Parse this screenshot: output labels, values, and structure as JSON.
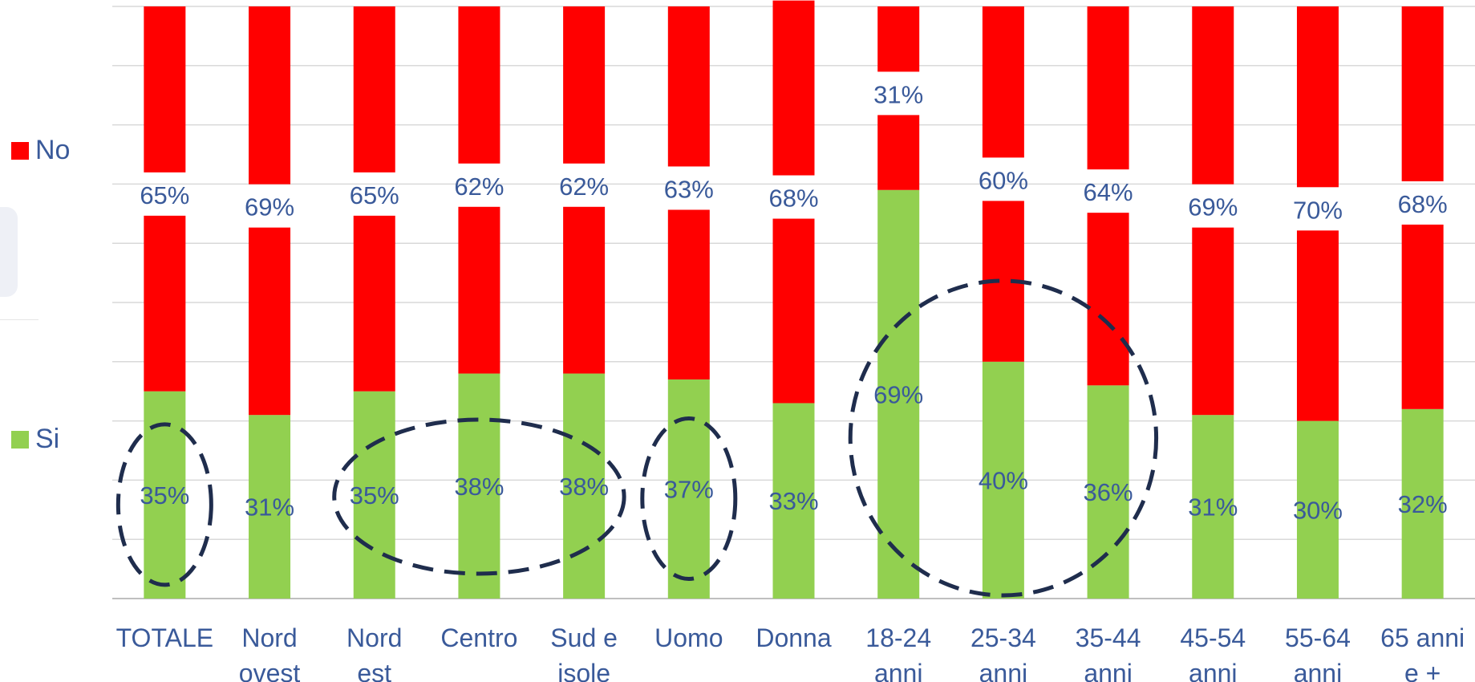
{
  "chart_data": {
    "type": "bar",
    "stacked": true,
    "percent_scale": true,
    "title": "",
    "xlabel": "",
    "ylabel": "",
    "ylim": [
      0,
      100
    ],
    "grid": true,
    "legend_position": "left",
    "categories": [
      "TOTALE",
      "Nord ovest",
      "Nord est",
      "Centro",
      "Sud e isole",
      "Uomo",
      "Donna",
      "18-24 anni",
      "25-34 anni",
      "35-44 anni",
      "45-54 anni",
      "55-64 anni",
      "65 anni e +"
    ],
    "category_lines": [
      [
        "TOTALE"
      ],
      [
        "Nord",
        "ovest"
      ],
      [
        "Nord",
        "est"
      ],
      [
        "Centro"
      ],
      [
        "Sud e",
        "isole"
      ],
      [
        "Uomo"
      ],
      [
        "Donna"
      ],
      [
        "18-24",
        "anni"
      ],
      [
        "25-34",
        "anni"
      ],
      [
        "35-44",
        "anni"
      ],
      [
        "45-54",
        "anni"
      ],
      [
        "55-64",
        "anni"
      ],
      [
        "65 anni",
        "e +"
      ]
    ],
    "series": [
      {
        "name": "Si",
        "color": "#92d050",
        "values": [
          35,
          31,
          35,
          38,
          38,
          37,
          33,
          69,
          40,
          36,
          31,
          30,
          32
        ],
        "labels": [
          "35%",
          "31%",
          "35%",
          "38%",
          "38%",
          "37%",
          "33%",
          "69%",
          "40%",
          "36%",
          "31%",
          "30%",
          "32%"
        ]
      },
      {
        "name": "No",
        "color": "#ff0000",
        "values": [
          65,
          69,
          65,
          62,
          62,
          63,
          68,
          31,
          60,
          64,
          69,
          70,
          68
        ],
        "labels": [
          "65%",
          "69%",
          "65%",
          "62%",
          "62%",
          "63%",
          "68%",
          "31%",
          "60%",
          "64%",
          "69%",
          "70%",
          "68%"
        ]
      }
    ],
    "highlight_groups": [
      {
        "categories": [
          "TOTALE"
        ]
      },
      {
        "categories": [
          "Nord est",
          "Centro",
          "Sud e isole"
        ]
      },
      {
        "categories": [
          "Uomo"
        ]
      },
      {
        "categories": [
          "18-24 anni",
          "25-34 anni",
          "35-44 anni"
        ]
      }
    ]
  },
  "legend": {
    "items": [
      {
        "label": "No",
        "color": "#ff0000"
      },
      {
        "label": "Si",
        "color": "#92d050"
      }
    ]
  },
  "colors": {
    "label_text": "#3a5a9a",
    "grid": "#d9d9d9",
    "axis": "#bfbfbf",
    "highlight_stroke": "#1f2d4d"
  }
}
